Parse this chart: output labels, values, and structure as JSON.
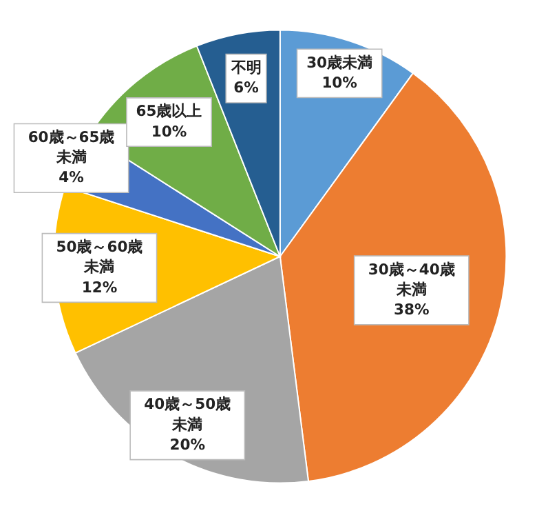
{
  "chart_data": {
    "type": "pie",
    "categories": [
      "30歳未満",
      "30歳～40歳未満",
      "40歳～50歳未満",
      "50歳～60歳未満",
      "60歳～65歳未満",
      "65歳以上",
      "不明"
    ],
    "values": [
      10,
      38,
      20,
      12,
      4,
      10,
      6
    ],
    "value_labels": [
      "10%",
      "38%",
      "20%",
      "12%",
      "4%",
      "10%",
      "6%"
    ],
    "colors": [
      "#5b9bd5",
      "#ed7d31",
      "#a5a5a5",
      "#ffc000",
      "#4472c4",
      "#70ad47",
      "#255e91"
    ],
    "legend": false
  }
}
